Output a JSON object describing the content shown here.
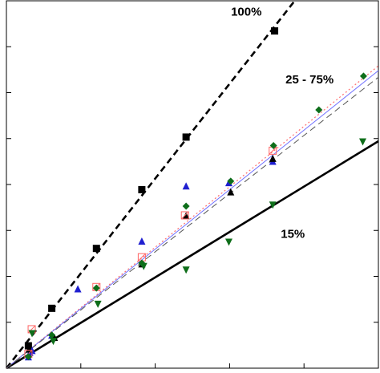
{
  "chart_data": {
    "type": "scatter",
    "title": "",
    "xlabel": "",
    "ylabel": "",
    "xlim": [
      0,
      100
    ],
    "ylim": [
      0,
      100
    ],
    "x_ticks": [
      20,
      40,
      60,
      80
    ],
    "y_ticks": [
      12.5,
      25,
      37.5,
      50,
      62.5,
      75,
      87.5
    ],
    "grid": false,
    "legend": "none",
    "annotations": [
      {
        "text": "100%",
        "x": 64.5,
        "y": 96
      },
      {
        "text": "25 - 75%",
        "x": 81.5,
        "y": 77.5
      },
      {
        "text": "15%",
        "x": 77,
        "y": 35.5
      }
    ],
    "fit_lines": [
      {
        "group": "100%",
        "style": "dashed",
        "color": "#000000",
        "width": 2.6,
        "x": [
          0,
          77.5
        ],
        "y": [
          0,
          100
        ]
      },
      {
        "group": "15%",
        "style": "solid",
        "color": "#000000",
        "width": 2.6,
        "x": [
          0,
          100
        ],
        "y": [
          0,
          61.8
        ]
      },
      {
        "group": "25-75%",
        "style": "dotted",
        "color": "#ff6f6f",
        "width": 1.2,
        "x": [
          0,
          100
        ],
        "y": [
          0,
          82.3
        ]
      },
      {
        "group": "25-75%",
        "style": "solid",
        "color": "#7070ff",
        "width": 1.0,
        "x": [
          0,
          100
        ],
        "y": [
          0,
          81.0
        ]
      },
      {
        "group": "25-75%",
        "style": "dashed",
        "color": "#555555",
        "width": 1.0,
        "x": [
          0,
          100
        ],
        "y": [
          0,
          79.2
        ]
      }
    ],
    "series": [
      {
        "marker": "square",
        "color": "#000000",
        "points": [
          [
            5.9,
            6.1
          ],
          [
            12.2,
            16.3
          ],
          [
            24.2,
            32.6
          ],
          [
            36.4,
            48.6
          ],
          [
            48.3,
            62.9
          ],
          [
            72.1,
            91.8
          ]
        ]
      },
      {
        "marker": "triangle-up",
        "color": "#1f1fd0",
        "points": [
          [
            5.9,
            2.9
          ],
          [
            6.3,
            4.1
          ],
          [
            6.9,
            4.6
          ],
          [
            12.2,
            8.8
          ],
          [
            19.2,
            21.4
          ],
          [
            36.4,
            34.4
          ],
          [
            48.3,
            49.4
          ],
          [
            59.8,
            50.3
          ],
          [
            71.6,
            56.1
          ]
        ]
      },
      {
        "marker": "triangle-up",
        "color": "#000000",
        "points": [
          [
            6.1,
            5.0
          ],
          [
            12.9,
            8.2
          ],
          [
            36.4,
            28.2
          ],
          [
            48.3,
            41.3
          ],
          [
            60.3,
            47.8
          ],
          [
            71.6,
            56.9
          ]
        ]
      },
      {
        "marker": "square-open",
        "color": "#ff6464",
        "points": [
          [
            5.9,
            3.9
          ],
          [
            6.8,
            10.6
          ],
          [
            24.2,
            22.1
          ],
          [
            36.4,
            30.2
          ],
          [
            48.0,
            41.6
          ],
          [
            71.6,
            59.2
          ]
        ]
      },
      {
        "marker": "diamond",
        "color": "#0e6e1a",
        "points": [
          [
            5.9,
            3.1
          ],
          [
            12.2,
            9.0
          ],
          [
            24.2,
            21.8
          ],
          [
            36.4,
            28.6
          ],
          [
            48.3,
            44.1
          ],
          [
            60.3,
            50.9
          ],
          [
            71.8,
            60.6
          ],
          [
            84.0,
            70.3
          ],
          [
            96.0,
            79.5
          ]
        ]
      },
      {
        "marker": "triangle-down",
        "color": "#0e6e1a",
        "points": [
          [
            6.9,
            9.6
          ],
          [
            12.6,
            7.5
          ],
          [
            24.6,
            17.6
          ],
          [
            36.9,
            27.9
          ],
          [
            48.3,
            26.9
          ],
          [
            59.8,
            34.5
          ],
          [
            71.6,
            44.6
          ],
          [
            95.8,
            61.8
          ]
        ]
      }
    ]
  }
}
